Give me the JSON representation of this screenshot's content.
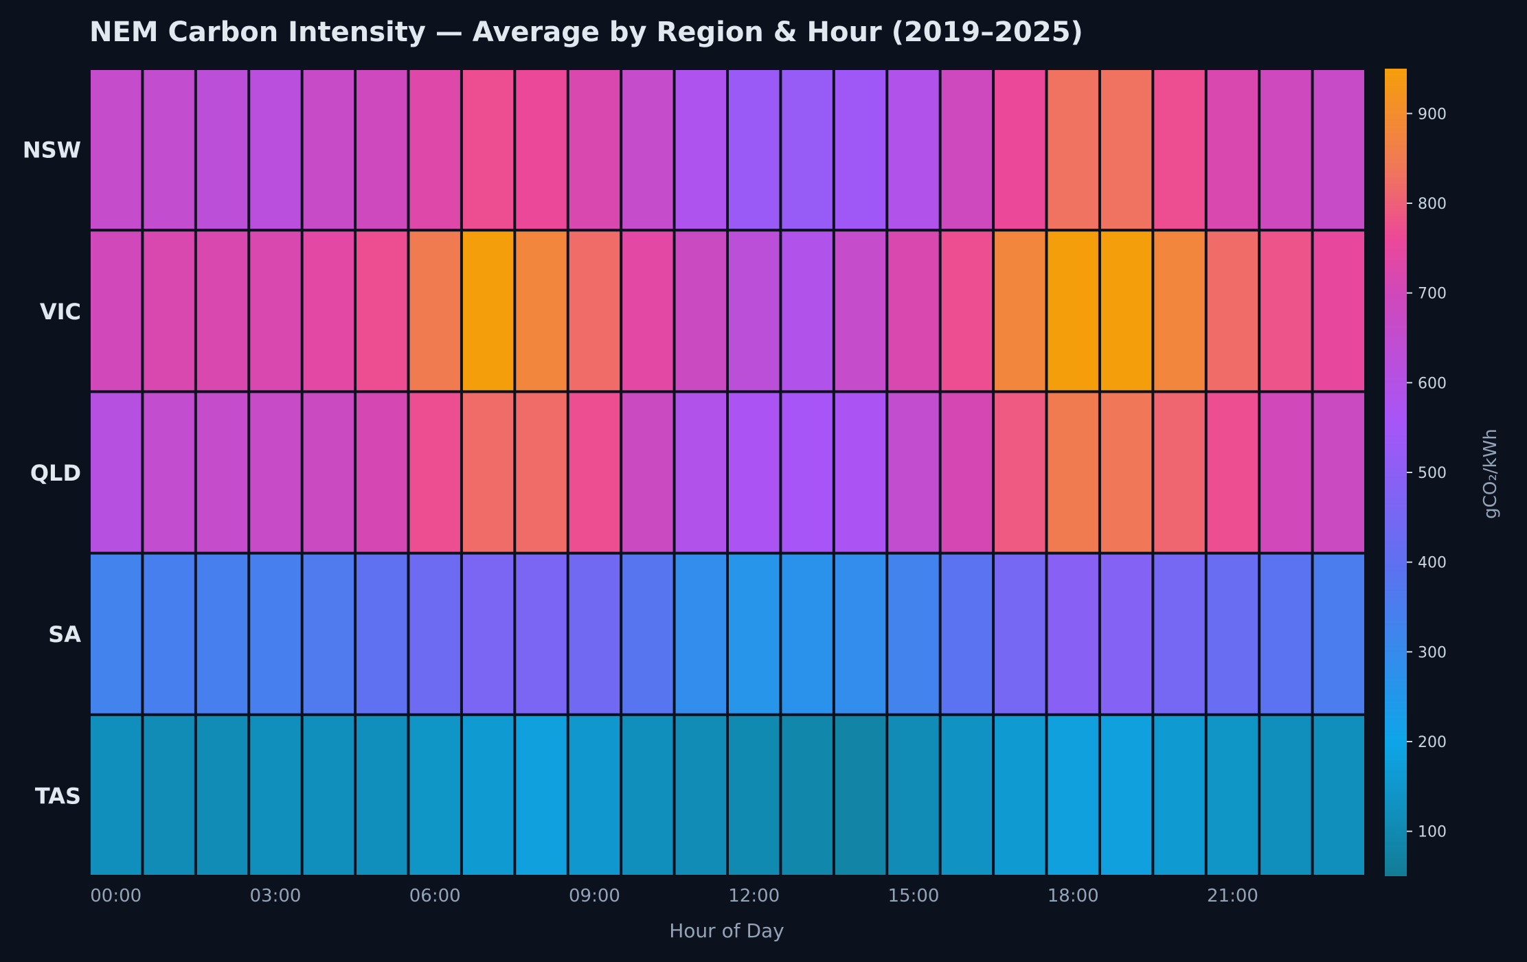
{
  "chart_data": {
    "type": "heatmap",
    "title": "NEM Carbon Intensity — Average by Region & Hour (2019–2025)",
    "xlabel": "Hour of Day",
    "ylabel": "",
    "colorbar_label": "gCO₂/kWh",
    "rows": [
      "NSW",
      "VIC",
      "QLD",
      "SA",
      "TAS"
    ],
    "columns": [
      "00",
      "01",
      "02",
      "03",
      "04",
      "05",
      "06",
      "07",
      "08",
      "09",
      "10",
      "11",
      "12",
      "13",
      "14",
      "15",
      "16",
      "17",
      "18",
      "19",
      "20",
      "21",
      "22",
      "23"
    ],
    "x_tick_labels": [
      {
        "col": 0,
        "label": "00:00"
      },
      {
        "col": 3,
        "label": "03:00"
      },
      {
        "col": 6,
        "label": "06:00"
      },
      {
        "col": 9,
        "label": "09:00"
      },
      {
        "col": 12,
        "label": "12:00"
      },
      {
        "col": 15,
        "label": "15:00"
      },
      {
        "col": 18,
        "label": "18:00"
      },
      {
        "col": 21,
        "label": "21:00"
      }
    ],
    "values": [
      [
        660,
        650,
        630,
        620,
        670,
        690,
        730,
        770,
        760,
        720,
        660,
        580,
        530,
        520,
        540,
        590,
        690,
        760,
        830,
        830,
        770,
        720,
        690,
        670
      ],
      [
        700,
        720,
        720,
        720,
        740,
        770,
        850,
        950,
        880,
        820,
        740,
        680,
        630,
        590,
        660,
        720,
        770,
        880,
        950,
        950,
        880,
        820,
        780,
        750
      ],
      [
        610,
        650,
        660,
        670,
        680,
        710,
        770,
        820,
        820,
        770,
        680,
        590,
        570,
        560,
        570,
        650,
        710,
        790,
        850,
        840,
        810,
        770,
        700,
        680
      ],
      [
        330,
        340,
        340,
        340,
        360,
        400,
        430,
        460,
        460,
        440,
        380,
        290,
        260,
        270,
        290,
        330,
        390,
        450,
        490,
        480,
        450,
        420,
        390,
        350
      ],
      [
        120,
        110,
        110,
        120,
        120,
        120,
        140,
        160,
        180,
        150,
        120,
        110,
        100,
        90,
        80,
        110,
        130,
        160,
        180,
        180,
        160,
        140,
        120,
        120
      ]
    ],
    "colorbar": {
      "range": [
        50,
        950
      ],
      "ticks": [
        100,
        200,
        300,
        400,
        500,
        600,
        700,
        800,
        900
      ]
    },
    "colorscale": [
      [
        50,
        "#137c96"
      ],
      [
        200,
        "#0ea5e8"
      ],
      [
        400,
        "#5f70f0"
      ],
      [
        560,
        "#a855f7"
      ],
      [
        700,
        "#d048b9"
      ],
      [
        760,
        "#ec4899"
      ],
      [
        840,
        "#f07858"
      ],
      [
        950,
        "#f59e0b"
      ]
    ],
    "colors": {
      "background": "#0b121d",
      "title": "#e2e8f0",
      "row_label": "#e2e8f0",
      "tick_label": "#94a3b8",
      "colorbar_tick": "#cbd5e1",
      "cell_border": "#0b121d"
    }
  }
}
